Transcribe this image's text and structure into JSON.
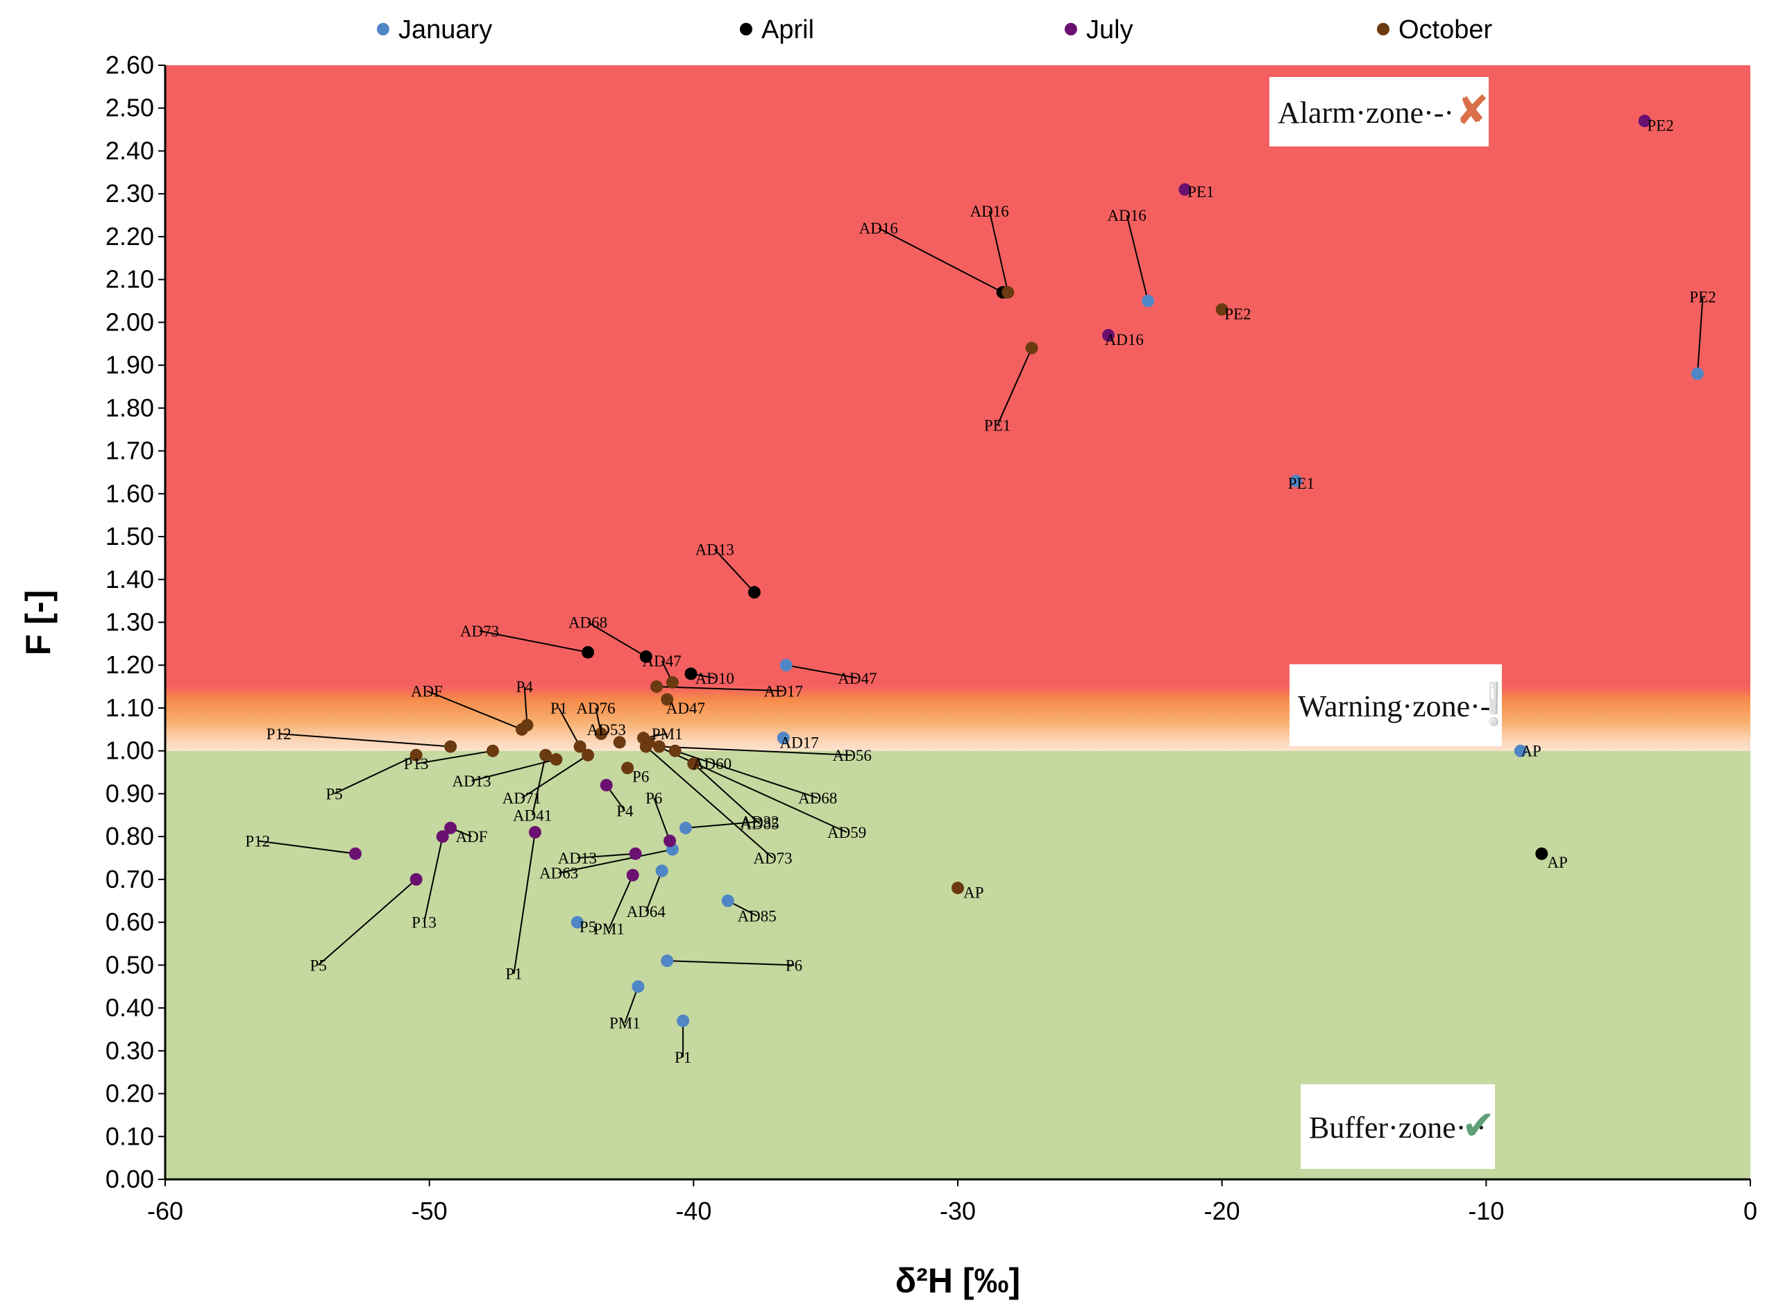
{
  "chart_data": {
    "type": "scatter",
    "xlabel": "δ²H [‰]",
    "ylabel": "F [-]",
    "xlim": [
      -60,
      0
    ],
    "ylim": [
      0,
      2.6
    ],
    "x_ticks": [
      "-60",
      "-50",
      "-40",
      "-30",
      "-20",
      "-10",
      "0"
    ],
    "y_ticks": [
      "0.00",
      "0.10",
      "0.20",
      "0.30",
      "0.40",
      "0.50",
      "0.60",
      "0.70",
      "0.80",
      "0.90",
      "1.00",
      "1.10",
      "1.20",
      "1.30",
      "1.40",
      "1.50",
      "1.60",
      "1.70",
      "1.80",
      "1.90",
      "2.00",
      "2.10",
      "2.20",
      "2.30",
      "2.40",
      "2.50",
      "2.60"
    ],
    "zones": [
      {
        "name": "Alarm zone",
        "label": "Alarm·zone·-·",
        "from": 1.15,
        "to": 2.6,
        "color": "#f46060",
        "symbol": "✘",
        "symbol_color": "#d9704a"
      },
      {
        "name": "Warning zone",
        "label": "Warning·zone·-·",
        "from": 1.0,
        "to": 1.15,
        "color": "#f6a050",
        "symbol": "❕",
        "symbol_color": "#e8b850"
      },
      {
        "name": "Buffer zone",
        "label": "Buffer·zone·-·",
        "from": 0.0,
        "to": 1.0,
        "color": "#c5d89f",
        "symbol": "✔",
        "symbol_color": "#5fa07a"
      }
    ],
    "series": [
      {
        "name": "January",
        "color": "#4f86c6",
        "points": [
          {
            "label": "PE2",
            "x": -2.0,
            "y": 1.88
          },
          {
            "label": "PE1",
            "x": -17.2,
            "y": 1.63
          },
          {
            "label": "AD16",
            "x": -22.8,
            "y": 2.05
          },
          {
            "label": "AP",
            "x": -8.7,
            "y": 1.0
          },
          {
            "label": "AD47",
            "x": -36.5,
            "y": 1.2
          },
          {
            "label": "AD17",
            "x": -36.6,
            "y": 1.03
          },
          {
            "label": "AD60",
            "x": -40.0,
            "y": 0.97
          },
          {
            "label": "AD85",
            "x": -38.7,
            "y": 0.65
          },
          {
            "label": "AD32",
            "x": -40.3,
            "y": 0.82
          },
          {
            "label": "AD63",
            "x": -40.8,
            "y": 0.77
          },
          {
            "label": "AD64",
            "x": -41.2,
            "y": 0.72
          },
          {
            "label": "P5",
            "x": -44.4,
            "y": 0.6
          },
          {
            "label": "P6",
            "x": -41.0,
            "y": 0.51
          },
          {
            "label": "PM1",
            "x": -42.1,
            "y": 0.45
          },
          {
            "label": "P1",
            "x": -40.4,
            "y": 0.37
          }
        ]
      },
      {
        "name": "April",
        "color": "#000000",
        "points": [
          {
            "label": "AD16",
            "x": -28.3,
            "y": 2.07
          },
          {
            "label": "AD13",
            "x": -37.7,
            "y": 1.37
          },
          {
            "label": "AD73",
            "x": -44.0,
            "y": 1.23
          },
          {
            "label": "AD68",
            "x": -41.8,
            "y": 1.22
          },
          {
            "label": "AD10",
            "x": -40.1,
            "y": 1.18
          },
          {
            "label": "AP",
            "x": -7.9,
            "y": 0.76
          }
        ]
      },
      {
        "name": "July",
        "color": "#6a1070",
        "points": [
          {
            "label": "PE2",
            "x": -4.0,
            "y": 2.47
          },
          {
            "label": "PE1",
            "x": -21.4,
            "y": 2.31
          },
          {
            "label": "AD16",
            "x": -24.3,
            "y": 1.97
          },
          {
            "label": "P4",
            "x": -43.3,
            "y": 0.92
          },
          {
            "label": "ADF",
            "x": -49.2,
            "y": 0.82
          },
          {
            "label": "P13",
            "x": -49.5,
            "y": 0.8
          },
          {
            "label": "P1",
            "x": -46.0,
            "y": 0.81
          },
          {
            "label": "P12",
            "x": -52.8,
            "y": 0.76
          },
          {
            "label": "P5",
            "x": -50.5,
            "y": 0.7
          },
          {
            "label": "P6",
            "x": -40.9,
            "y": 0.79
          },
          {
            "label": "AD13",
            "x": -42.2,
            "y": 0.76
          },
          {
            "label": "PM1",
            "x": -42.3,
            "y": 0.71
          }
        ]
      },
      {
        "name": "October",
        "color": "#6b3a10",
        "points": [
          {
            "label": "AD16",
            "x": -28.1,
            "y": 2.07
          },
          {
            "label": "PE2",
            "x": -20.0,
            "y": 2.03
          },
          {
            "label": "PE1",
            "x": -27.2,
            "y": 1.94
          },
          {
            "label": "AP",
            "x": -30.0,
            "y": 0.68
          },
          {
            "label": "AD47",
            "x": -40.8,
            "y": 1.16
          },
          {
            "label": "AD17",
            "x": -41.4,
            "y": 1.15
          },
          {
            "label": "AD47",
            "x": -41.0,
            "y": 1.12
          },
          {
            "label": "ADF",
            "x": -46.5,
            "y": 1.05
          },
          {
            "label": "P4",
            "x": -46.3,
            "y": 1.06
          },
          {
            "label": "P12",
            "x": -49.2,
            "y": 1.01
          },
          {
            "label": "P5",
            "x": -50.5,
            "y": 0.99
          },
          {
            "label": "P13",
            "x": -47.6,
            "y": 1.0
          },
          {
            "label": "AD13",
            "x": -45.2,
            "y": 0.98
          },
          {
            "label": "AD71",
            "x": -44.0,
            "y": 0.99
          },
          {
            "label": "P1",
            "x": -44.3,
            "y": 1.01
          },
          {
            "label": "AD76",
            "x": -43.5,
            "y": 1.04
          },
          {
            "label": "AD41",
            "x": -45.6,
            "y": 0.99
          },
          {
            "label": "AD53",
            "x": -42.8,
            "y": 1.02
          },
          {
            "label": "PM1",
            "x": -41.9,
            "y": 1.03
          },
          {
            "label": "P6",
            "x": -42.5,
            "y": 0.96
          },
          {
            "label": "AD56",
            "x": -41.3,
            "y": 1.01
          },
          {
            "label": "AD68",
            "x": -40.7,
            "y": 1.0
          },
          {
            "label": "AD59",
            "x": -41.7,
            "y": 1.02
          },
          {
            "label": "AD73",
            "x": -41.8,
            "y": 1.01
          },
          {
            "label": "AD85",
            "x": -40.0,
            "y": 0.97
          }
        ]
      }
    ],
    "annotations": [
      {
        "text": "PE2",
        "x": -1.8,
        "y": 2.06,
        "px": -2.0,
        "py": 1.88
      },
      {
        "text": "PE1",
        "x": -17.0,
        "y": 1.625,
        "px": -17.2,
        "py": 1.63
      },
      {
        "text": "AD16",
        "x": -23.6,
        "y": 2.25,
        "px": -22.8,
        "py": 2.05
      },
      {
        "text": "AP",
        "x": -8.3,
        "y": 1.0,
        "px": -8.7,
        "py": 1.0
      },
      {
        "text": "AD47",
        "x": -33.8,
        "y": 1.17,
        "px": -36.5,
        "py": 1.2
      },
      {
        "text": "AD17",
        "x": -36.0,
        "y": 1.02,
        "px": -36.6,
        "py": 1.03
      },
      {
        "text": "AD60",
        "x": -39.3,
        "y": 0.97,
        "px": -40.0,
        "py": 0.97
      },
      {
        "text": "AD85",
        "x": -37.6,
        "y": 0.615,
        "px": -38.7,
        "py": 0.65
      },
      {
        "text": "AD32",
        "x": -37.5,
        "y": 0.835,
        "px": -40.3,
        "py": 0.82
      },
      {
        "text": "AD63",
        "x": -45.1,
        "y": 0.715,
        "px": -40.8,
        "py": 0.77
      },
      {
        "text": "AD64",
        "x": -41.8,
        "y": 0.625,
        "px": -41.2,
        "py": 0.72
      },
      {
        "text": "P5",
        "x": -44.0,
        "y": 0.59,
        "px": -44.4,
        "py": 0.6
      },
      {
        "text": "P6",
        "x": -36.2,
        "y": 0.5,
        "px": -41.0,
        "py": 0.51
      },
      {
        "text": "PM1",
        "x": -42.6,
        "y": 0.365,
        "px": -42.1,
        "py": 0.45
      },
      {
        "text": "P1",
        "x": -40.4,
        "y": 0.285,
        "px": -40.4,
        "py": 0.37
      },
      {
        "text": "AD16",
        "x": -33.0,
        "y": 2.22,
        "px": -28.3,
        "py": 2.07
      },
      {
        "text": "AD13",
        "x": -39.2,
        "y": 1.47,
        "px": -37.7,
        "py": 1.37
      },
      {
        "text": "AD73",
        "x": -48.1,
        "y": 1.28,
        "px": -44.0,
        "py": 1.23
      },
      {
        "text": "AD68",
        "x": -44.0,
        "y": 1.3,
        "px": -41.8,
        "py": 1.22
      },
      {
        "text": "AD10",
        "x": -39.2,
        "y": 1.17,
        "px": -40.1,
        "py": 1.18
      },
      {
        "text": "AP",
        "x": -7.3,
        "y": 0.74,
        "px": -7.9,
        "py": 0.76
      },
      {
        "text": "PE2",
        "x": -3.4,
        "y": 2.46,
        "px": -4.0,
        "py": 2.47
      },
      {
        "text": "PE1",
        "x": -20.8,
        "y": 2.305,
        "px": -21.4,
        "py": 2.31
      },
      {
        "text": "AD16",
        "x": -23.7,
        "y": 1.96,
        "px": -24.3,
        "py": 1.97
      },
      {
        "text": "P4",
        "x": -42.6,
        "y": 0.86,
        "px": -43.3,
        "py": 0.92
      },
      {
        "text": "ADF",
        "x": -48.4,
        "y": 0.8,
        "px": -49.2,
        "py": 0.82
      },
      {
        "text": "P13",
        "x": -50.2,
        "y": 0.6,
        "px": -49.5,
        "py": 0.8
      },
      {
        "text": "P1",
        "x": -46.8,
        "y": 0.48,
        "px": -46.0,
        "py": 0.81
      },
      {
        "text": "P12",
        "x": -56.5,
        "y": 0.79,
        "px": -52.8,
        "py": 0.76
      },
      {
        "text": "P5",
        "x": -54.2,
        "y": 0.5,
        "px": -50.5,
        "py": 0.7
      },
      {
        "text": "P6",
        "x": -41.5,
        "y": 0.89,
        "px": -40.9,
        "py": 0.79
      },
      {
        "text": "AD13",
        "x": -44.4,
        "y": 0.75,
        "px": -42.2,
        "py": 0.76
      },
      {
        "text": "PM1",
        "x": -43.2,
        "y": 0.585,
        "px": -42.3,
        "py": 0.71
      },
      {
        "text": "AD16",
        "x": -28.8,
        "y": 2.26,
        "px": -28.1,
        "py": 2.07
      },
      {
        "text": "PE2",
        "x": -19.4,
        "y": 2.02,
        "px": -20.0,
        "py": 2.03
      },
      {
        "text": "PE1",
        "x": -28.5,
        "y": 1.76,
        "px": -27.2,
        "py": 1.94
      },
      {
        "text": "AP",
        "x": -29.4,
        "y": 0.67,
        "px": -30.0,
        "py": 0.68
      },
      {
        "text": "AD47",
        "x": -41.2,
        "y": 1.21,
        "px": -40.8,
        "py": 1.16
      },
      {
        "text": "AD17",
        "x": -36.6,
        "y": 1.14,
        "px": -41.4,
        "py": 1.15
      },
      {
        "text": "AD47",
        "x": -40.3,
        "y": 1.1,
        "px": -41.0,
        "py": 1.12
      },
      {
        "text": "ADF",
        "x": -50.1,
        "y": 1.14,
        "px": -46.5,
        "py": 1.05
      },
      {
        "text": "P4",
        "x": -46.4,
        "y": 1.15,
        "px": -46.3,
        "py": 1.06
      },
      {
        "text": "P12",
        "x": -55.7,
        "y": 1.04,
        "px": -49.2,
        "py": 1.01
      },
      {
        "text": "P5",
        "x": -53.6,
        "y": 0.9,
        "px": -50.5,
        "py": 0.99
      },
      {
        "text": "P13",
        "x": -50.5,
        "y": 0.97,
        "px": -47.6,
        "py": 1.0
      },
      {
        "text": "AD13",
        "x": -48.4,
        "y": 0.93,
        "px": -45.2,
        "py": 0.98
      },
      {
        "text": "AD71",
        "x": -46.5,
        "y": 0.89,
        "px": -44.0,
        "py": 0.99
      },
      {
        "text": "P1",
        "x": -45.1,
        "y": 1.1,
        "px": -44.3,
        "py": 1.01
      },
      {
        "text": "AD76",
        "x": -43.7,
        "y": 1.1,
        "px": -43.5,
        "py": 1.04
      },
      {
        "text": "AD41",
        "x": -46.1,
        "y": 0.85,
        "px": -45.6,
        "py": 0.99
      },
      {
        "text": "AD53",
        "x": -43.3,
        "y": 1.05,
        "px": -42.8,
        "py": 1.02
      },
      {
        "text": "PM1",
        "x": -41.0,
        "y": 1.04,
        "px": -41.9,
        "py": 1.03
      },
      {
        "text": "P6",
        "x": -42.0,
        "y": 0.94,
        "px": -42.5,
        "py": 0.96
      },
      {
        "text": "AD56",
        "x": -34.0,
        "y": 0.99,
        "px": -41.3,
        "py": 1.01
      },
      {
        "text": "AD68",
        "x": -35.3,
        "y": 0.89,
        "px": -40.7,
        "py": 1.0
      },
      {
        "text": "AD59",
        "x": -34.2,
        "y": 0.81,
        "px": -41.7,
        "py": 1.02
      },
      {
        "text": "AD73",
        "x": -37.0,
        "y": 0.75,
        "px": -41.8,
        "py": 1.01
      },
      {
        "text": "AD85",
        "x": -37.5,
        "y": 0.83,
        "px": -40.0,
        "py": 0.97
      }
    ]
  }
}
